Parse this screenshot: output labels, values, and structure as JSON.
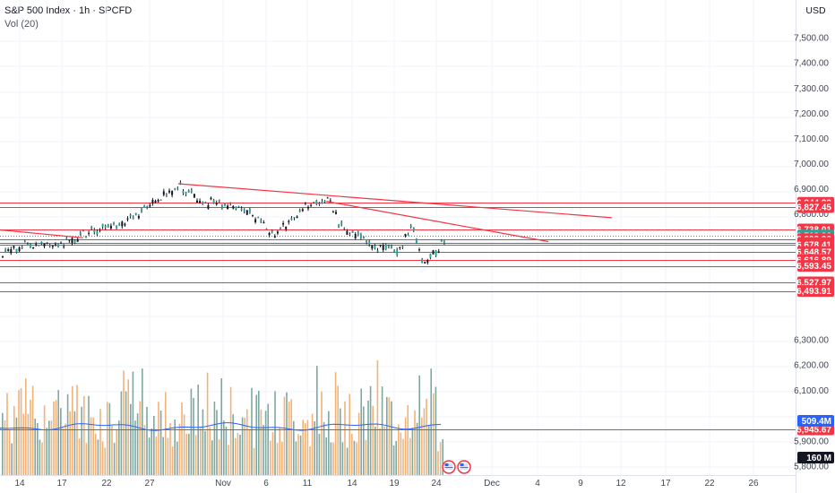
{
  "header": {
    "symbol": "S&P 500 Index · 1h · SPCFD",
    "volume_label": "Vol (20)",
    "currency": "USD"
  },
  "colors": {
    "up": "#26a69a",
    "down": "#ef5350",
    "candle_body": "#131722",
    "level_line": "#f23645",
    "trend_line": "#f23645",
    "vol_up": "#7fa8a0",
    "vol_down": "#f0b47a",
    "vol_ma": "#2962ff",
    "grid": "#f0f3fa"
  },
  "chart_data": {
    "type": "candlestick",
    "y_ticks": [
      "7,500.00",
      "7,400.00",
      "7,300.00",
      "7,200.00",
      "7,100.00",
      "7,000.00",
      "6,900.00",
      "6,800.00",
      "6,300.00",
      "6,200.00",
      "6,100.00",
      "5,900.00",
      "5,800.00"
    ],
    "x_ticks": [
      "14",
      "17",
      "22",
      "27",
      "Nov",
      "6",
      "11",
      "14",
      "19",
      "24",
      "Dec",
      "4",
      "9",
      "12",
      "17",
      "22",
      "26"
    ],
    "price_labels": [
      {
        "text": "6,844.22",
        "kind": "level"
      },
      {
        "text": "6,827.45",
        "kind": "level"
      },
      {
        "text": "6,738.01",
        "kind": "level"
      },
      {
        "text": "6,712.36",
        "kind": "current",
        "sub": "21:03"
      },
      {
        "text": "6,699.96",
        "kind": "level"
      },
      {
        "text": "6,684.49",
        "kind": "level"
      },
      {
        "text": "6,678.41",
        "kind": "level"
      },
      {
        "text": "6,648.57",
        "kind": "level"
      },
      {
        "text": "6,616.89",
        "kind": "level"
      },
      {
        "text": "6,593.45",
        "kind": "level"
      },
      {
        "text": "6,527.97",
        "kind": "level"
      },
      {
        "text": "6,493.91",
        "kind": "level"
      },
      {
        "text": "5,945.67",
        "kind": "level"
      }
    ],
    "volume_labels": [
      {
        "text": "509.4M",
        "kind": "ma"
      },
      {
        "text": "160 M",
        "kind": "vol"
      }
    ],
    "levels": [
      6844.22,
      6827.45,
      6738.01,
      6699.96,
      6684.49,
      6678.41,
      6648.57,
      6616.89,
      6593.45,
      6527.97,
      6493.91,
      5945.67
    ],
    "trendlines": [
      {
        "from": [
          "Oct 29",
          6920
        ],
        "to": [
          "Dec 9",
          6785
        ]
      },
      {
        "from": [
          "Nov 12",
          6850
        ],
        "to": [
          "Dec 3",
          6690
        ]
      },
      {
        "from": [
          "Oct 10",
          6745
        ],
        "to": [
          "Oct 20",
          6705
        ]
      }
    ],
    "price_path": [
      [
        "Oct 13",
        6650
      ],
      [
        "Oct 16",
        6700
      ],
      [
        "Oct 17",
        6665
      ],
      [
        "Oct 21",
        6740
      ],
      [
        "Oct 24",
        6770
      ],
      [
        "Oct 27",
        6860
      ],
      [
        "Oct 29",
        6910
      ],
      [
        "Oct 31",
        6850
      ],
      [
        "Nov 4",
        6820
      ],
      [
        "Nov 6",
        6760
      ],
      [
        "Nov 7",
        6710
      ],
      [
        "Nov 10",
        6830
      ],
      [
        "Nov 12",
        6860
      ],
      [
        "Nov 13",
        6770
      ],
      [
        "Nov 14",
        6730
      ],
      [
        "Nov 17",
        6670
      ],
      [
        "Nov 19",
        6660
      ],
      [
        "Nov 20",
        6770
      ],
      [
        "Nov 21",
        6610
      ],
      [
        "Nov 24",
        6712
      ]
    ]
  }
}
